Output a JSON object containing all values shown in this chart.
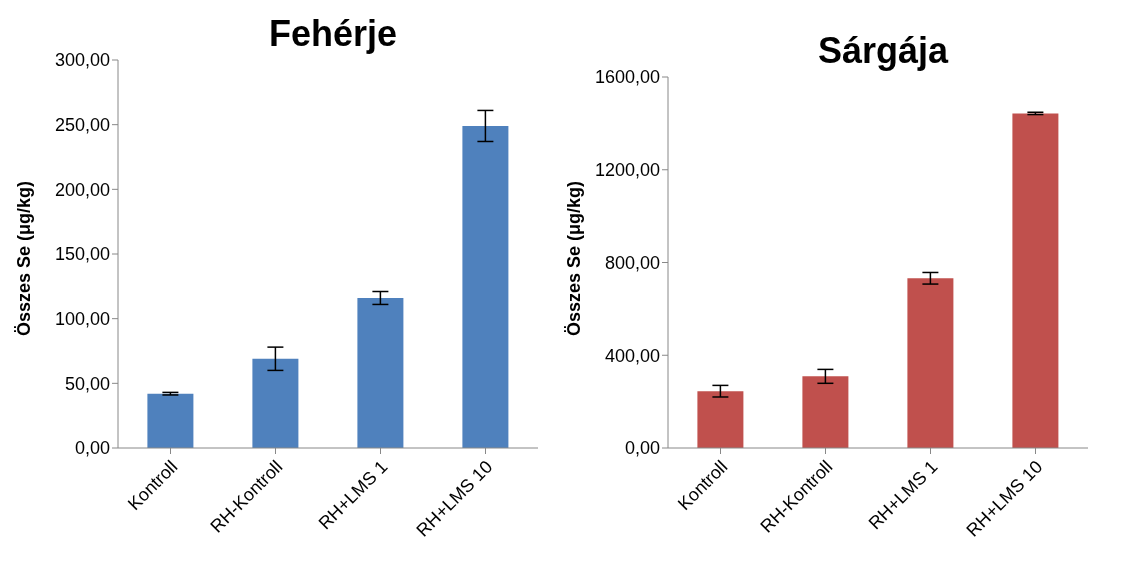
{
  "chart_data": [
    {
      "type": "bar",
      "title": "Fehérje",
      "ylabel": "Összes Se (μg/kg)",
      "categories": [
        "Kontroll",
        "RH-Kontroll",
        "RH+LMS 1",
        "RH+LMS 10"
      ],
      "series": [
        {
          "color": "#4f81bd",
          "values": [
            42,
            69,
            116,
            249
          ],
          "errors": [
            1,
            9,
            5,
            12
          ]
        }
      ],
      "ylim": [
        0,
        300
      ],
      "yticks": [
        {
          "value": 0,
          "label": "0,00"
        },
        {
          "value": 50,
          "label": "50,00"
        },
        {
          "value": 100,
          "label": "100,00"
        },
        {
          "value": 150,
          "label": "150,00"
        },
        {
          "value": 200,
          "label": "200,00"
        },
        {
          "value": 250,
          "label": "250,00"
        },
        {
          "value": 300,
          "label": "300,00"
        }
      ],
      "grid": false,
      "legend": false
    },
    {
      "type": "bar",
      "title": "Sárgája",
      "ylabel": "Összes Se (μg/kg)",
      "categories": [
        "Kontroll",
        "RH-Kontroll",
        "RH+LMS 1",
        "RH+LMS 10"
      ],
      "series": [
        {
          "color": "#c0504d",
          "values": [
            245,
            309,
            732,
            1443
          ],
          "errors": [
            25,
            30,
            25,
            5
          ]
        }
      ],
      "ylim": [
        0,
        1600
      ],
      "yticks": [
        {
          "value": 0,
          "label": "0,00"
        },
        {
          "value": 400,
          "label": "400,00"
        },
        {
          "value": 800,
          "label": "800,00"
        },
        {
          "value": 1200,
          "label": "1200,00"
        },
        {
          "value": 1600,
          "label": "1600,00"
        }
      ],
      "grid": false,
      "legend": false
    }
  ]
}
